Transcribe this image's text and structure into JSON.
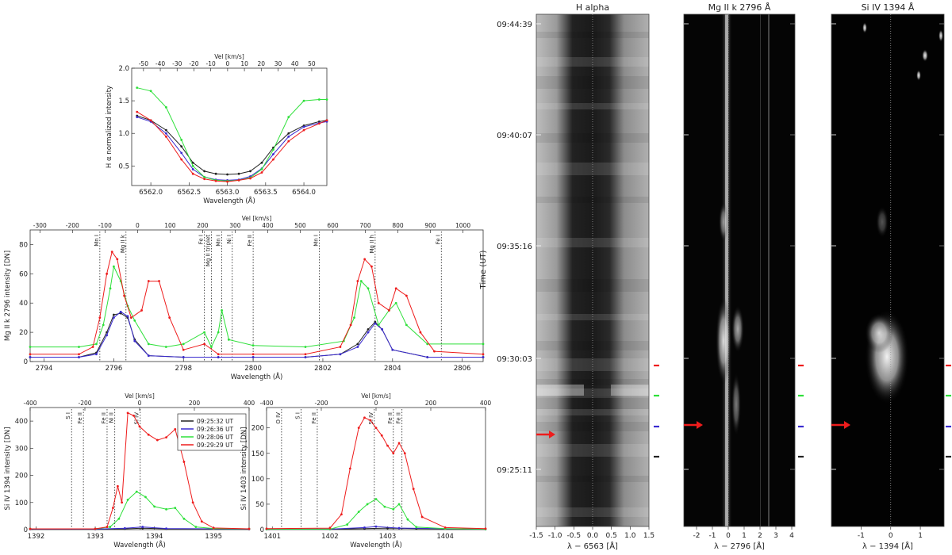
{
  "colors": {
    "black": "#222222",
    "blue": "#3a2bd0",
    "green": "#2ee03a",
    "red": "#ee1c1c"
  },
  "chart_data": [
    {
      "type": "line",
      "name": "halpha_profiles",
      "xlabel": "Wavelength (Å)",
      "ylabel": "H α normalized intensity",
      "x2label": "Vel [km/s]",
      "xlim": [
        6561.75,
        6564.3
      ],
      "ylim": [
        0.2,
        2.0
      ],
      "x2lim": [
        -57,
        59
      ],
      "xticks": [
        6562.0,
        6562.5,
        6563.0,
        6563.5,
        6564.0
      ],
      "xtick_labels": [
        "6562.0",
        "6562.5",
        "6563.0",
        "6563.5",
        "6564.0"
      ],
      "yticks": [
        0.5,
        1.0,
        1.5,
        2.0
      ],
      "ytick_labels": [
        "0.5",
        "1.0",
        "1.5",
        "2.0"
      ],
      "x2ticks": [
        -50,
        -40,
        -30,
        -20,
        -10,
        0,
        10,
        20,
        30,
        40,
        50
      ],
      "x2tick_labels": [
        "-50",
        "-40",
        "-30",
        "-20",
        "-10",
        "0",
        "10",
        "20",
        "30",
        "40",
        "50"
      ],
      "series": [
        {
          "color_key": "black",
          "x": [
            6561.82,
            6562.0,
            6562.2,
            6562.4,
            6562.55,
            6562.7,
            6562.85,
            6563.0,
            6563.15,
            6563.3,
            6563.45,
            6563.6,
            6563.8,
            6564.0,
            6564.2,
            6564.3
          ],
          "y": [
            1.27,
            1.2,
            1.05,
            0.8,
            0.55,
            0.42,
            0.38,
            0.37,
            0.38,
            0.42,
            0.55,
            0.78,
            1.0,
            1.12,
            1.18,
            1.2
          ]
        },
        {
          "color_key": "blue",
          "x": [
            6561.82,
            6562.0,
            6562.2,
            6562.4,
            6562.55,
            6562.7,
            6562.85,
            6563.0,
            6563.15,
            6563.3,
            6563.45,
            6563.6,
            6563.8,
            6564.0,
            6564.2,
            6564.3
          ],
          "y": [
            1.25,
            1.18,
            1.0,
            0.7,
            0.45,
            0.33,
            0.29,
            0.28,
            0.29,
            0.34,
            0.46,
            0.68,
            0.95,
            1.1,
            1.16,
            1.18
          ]
        },
        {
          "color_key": "green",
          "x": [
            6561.82,
            6562.0,
            6562.2,
            6562.4,
            6562.55,
            6562.7,
            6562.85,
            6563.0,
            6563.15,
            6563.3,
            6563.45,
            6563.6,
            6563.8,
            6564.0,
            6564.2,
            6564.3
          ],
          "y": [
            1.7,
            1.65,
            1.4,
            0.9,
            0.5,
            0.33,
            0.28,
            0.27,
            0.28,
            0.32,
            0.45,
            0.75,
            1.25,
            1.5,
            1.52,
            1.52
          ]
        },
        {
          "color_key": "red",
          "x": [
            6561.82,
            6562.0,
            6562.2,
            6562.4,
            6562.55,
            6562.7,
            6562.85,
            6563.0,
            6563.15,
            6563.3,
            6563.45,
            6563.6,
            6563.8,
            6564.0,
            6564.2,
            6564.3
          ],
          "y": [
            1.33,
            1.2,
            0.95,
            0.6,
            0.38,
            0.3,
            0.27,
            0.26,
            0.28,
            0.31,
            0.4,
            0.6,
            0.88,
            1.05,
            1.15,
            1.2
          ]
        }
      ]
    },
    {
      "type": "line",
      "name": "mgii_profiles",
      "xlabel": "Wavelength (Å)",
      "ylabel": "Mg II k 2796 intensity [DN]",
      "x2label": "Vel [km/s]",
      "xlim": [
        2793.6,
        2806.6
      ],
      "ylim": [
        0,
        90
      ],
      "x2lim": [
        -330,
        1062
      ],
      "xticks": [
        2794,
        2796,
        2798,
        2800,
        2802,
        2804,
        2806
      ],
      "xtick_labels": [
        "2794",
        "2796",
        "2798",
        "2800",
        "2802",
        "2804",
        "2806"
      ],
      "yticks": [
        0,
        20,
        40,
        60,
        80
      ],
      "ytick_labels": [
        "0",
        "20",
        "40",
        "60",
        "80"
      ],
      "x2ticks": [
        -300,
        -200,
        -100,
        0,
        100,
        200,
        300,
        400,
        500,
        600,
        700,
        800,
        900,
        1000
      ],
      "x2tick_labels": [
        "-300",
        "-200",
        "-100",
        "0",
        "100",
        "200",
        "300",
        "400",
        "500",
        "600",
        "700",
        "800",
        "900",
        "1000"
      ],
      "line_labels": [
        {
          "x": 2795.6,
          "label": "Mn I"
        },
        {
          "x": 2796.35,
          "label": "Mg II k"
        },
        {
          "x": 2798.6,
          "label": "Fe I"
        },
        {
          "x": 2798.8,
          "label": "Mg II triplet"
        },
        {
          "x": 2799.1,
          "label": "Mn I"
        },
        {
          "x": 2799.4,
          "label": "Ni I"
        },
        {
          "x": 2800.0,
          "label": "Fe II"
        },
        {
          "x": 2801.9,
          "label": "Mn I"
        },
        {
          "x": 2803.5,
          "label": "Mg II h"
        },
        {
          "x": 2805.4,
          "label": "Fe I"
        }
      ],
      "series": [
        {
          "color_key": "black",
          "x": [
            2793.6,
            2795.0,
            2795.5,
            2795.8,
            2796.0,
            2796.2,
            2796.4,
            2796.6,
            2797.0,
            2798.0,
            2799.0,
            2800.0,
            2801.5,
            2802.5,
            2803.0,
            2803.3,
            2803.5,
            2803.7,
            2804.0,
            2805.0,
            2806.6
          ],
          "y": [
            3,
            3,
            6,
            20,
            32,
            33,
            30,
            15,
            4,
            3,
            3,
            3,
            3,
            5,
            12,
            22,
            27,
            22,
            8,
            3,
            3
          ]
        },
        {
          "color_key": "blue",
          "x": [
            2793.6,
            2795.0,
            2795.5,
            2795.8,
            2796.0,
            2796.2,
            2796.4,
            2796.6,
            2797.0,
            2798.0,
            2799.0,
            2800.0,
            2801.5,
            2802.5,
            2803.0,
            2803.3,
            2803.5,
            2803.7,
            2804.0,
            2805.0,
            2806.6
          ],
          "y": [
            3,
            3,
            5,
            18,
            30,
            34,
            31,
            14,
            4,
            3,
            3,
            3,
            3,
            5,
            10,
            20,
            26,
            22,
            8,
            3,
            3
          ]
        },
        {
          "color_key": "green",
          "x": [
            2793.6,
            2795.0,
            2795.5,
            2795.7,
            2795.9,
            2796.0,
            2796.2,
            2796.4,
            2796.6,
            2797.0,
            2797.5,
            2798.0,
            2798.6,
            2798.8,
            2799.0,
            2799.1,
            2799.3,
            2800.0,
            2801.5,
            2802.6,
            2802.9,
            2803.1,
            2803.3,
            2803.6,
            2803.9,
            2804.1,
            2804.4,
            2805.0,
            2806.6
          ],
          "y": [
            10,
            10,
            12,
            25,
            50,
            65,
            55,
            38,
            28,
            12,
            10,
            12,
            20,
            10,
            20,
            35,
            15,
            11,
            10,
            14,
            30,
            55,
            50,
            25,
            35,
            40,
            25,
            12,
            12
          ]
        },
        {
          "color_key": "red",
          "x": [
            2793.6,
            2795.0,
            2795.4,
            2795.6,
            2795.8,
            2795.95,
            2796.1,
            2796.3,
            2796.5,
            2796.8,
            2797.0,
            2797.3,
            2797.6,
            2798.0,
            2798.6,
            2799.0,
            2800.0,
            2801.5,
            2802.5,
            2802.8,
            2803.0,
            2803.2,
            2803.4,
            2803.6,
            2803.9,
            2804.1,
            2804.4,
            2804.8,
            2805.2,
            2806.6
          ],
          "y": [
            5,
            5,
            10,
            30,
            60,
            75,
            70,
            45,
            30,
            35,
            55,
            55,
            30,
            8,
            12,
            5,
            5,
            5,
            10,
            25,
            55,
            70,
            65,
            40,
            35,
            50,
            45,
            20,
            7,
            5
          ]
        }
      ]
    },
    {
      "type": "line",
      "name": "siiv1394_profiles",
      "xlabel": "Wavelength (Å)",
      "ylabel": "Si IV 1394 intensity [DN]",
      "x2label": "Vel [km/s]",
      "xlim": [
        1391.9,
        1395.6
      ],
      "ylim": [
        0,
        450
      ],
      "x2lim": [
        -400,
        400
      ],
      "xticks": [
        1392,
        1393,
        1394,
        1395
      ],
      "xtick_labels": [
        "1392",
        "1393",
        "1394",
        "1395"
      ],
      "yticks": [
        0,
        100,
        200,
        300,
        400
      ],
      "ytick_labels": [
        "0",
        "100",
        "200",
        "300",
        "400"
      ],
      "x2ticks": [
        -400,
        -200,
        0,
        200,
        400
      ],
      "x2tick_labels": [
        "-400",
        "-200",
        "0",
        "200",
        "400"
      ],
      "line_labels": [
        {
          "x": 1392.6,
          "label": "S I"
        },
        {
          "x": 1392.8,
          "label": "Fe II"
        },
        {
          "x": 1393.2,
          "label": "Fe II"
        },
        {
          "x": 1393.33,
          "label": "Ni II"
        },
        {
          "x": 1393.76,
          "label": "Si IV"
        }
      ],
      "legend": [
        {
          "label": "09:25:32 UT",
          "color_key": "black"
        },
        {
          "label": "09:26:36 UT",
          "color_key": "blue"
        },
        {
          "label": "09:28:06 UT",
          "color_key": "green"
        },
        {
          "label": "09:29:29 UT",
          "color_key": "red"
        }
      ],
      "series": [
        {
          "color_key": "black",
          "x": [
            1391.9,
            1393.0,
            1393.5,
            1393.8,
            1394.2,
            1395.6
          ],
          "y": [
            2,
            2,
            3,
            5,
            3,
            2
          ]
        },
        {
          "color_key": "blue",
          "x": [
            1391.9,
            1393.0,
            1393.5,
            1393.8,
            1394.2,
            1395.6
          ],
          "y": [
            2,
            2,
            5,
            10,
            4,
            2
          ]
        },
        {
          "color_key": "green",
          "x": [
            1391.9,
            1393.0,
            1393.25,
            1393.4,
            1393.55,
            1393.7,
            1393.85,
            1394.0,
            1394.2,
            1394.35,
            1394.5,
            1394.7,
            1395.0,
            1395.6
          ],
          "y": [
            3,
            3,
            10,
            40,
            110,
            140,
            120,
            85,
            75,
            80,
            40,
            10,
            4,
            3
          ]
        },
        {
          "color_key": "red",
          "x": [
            1391.9,
            1393.0,
            1393.2,
            1393.3,
            1393.38,
            1393.45,
            1393.55,
            1393.65,
            1393.75,
            1393.9,
            1394.05,
            1394.2,
            1394.35,
            1394.5,
            1394.65,
            1394.8,
            1395.0,
            1395.6
          ],
          "y": [
            3,
            3,
            10,
            80,
            160,
            100,
            430,
            420,
            380,
            350,
            330,
            340,
            370,
            250,
            100,
            30,
            6,
            3
          ]
        }
      ]
    },
    {
      "type": "line",
      "name": "siiv1403_profiles",
      "xlabel": "Wavelength (Å)",
      "ylabel": "Si IV 1403 intensity [DN]",
      "x2label": "Vel [km/s]",
      "xlim": [
        1400.9,
        1404.7
      ],
      "ylim": [
        0,
        240
      ],
      "x2lim": [
        -400,
        400
      ],
      "xticks": [
        1401,
        1402,
        1403,
        1404
      ],
      "xtick_labels": [
        "1401",
        "1402",
        "1403",
        "1404"
      ],
      "yticks": [
        0,
        50,
        100,
        150,
        200
      ],
      "ytick_labels": [
        "0",
        "50",
        "100",
        "150",
        "200"
      ],
      "x2ticks": [
        -400,
        -200,
        0,
        200,
        400
      ],
      "x2tick_labels": [
        "-400",
        "-200",
        "0",
        "200",
        "400"
      ],
      "line_labels": [
        {
          "x": 1401.16,
          "label": "O IV"
        },
        {
          "x": 1401.5,
          "label": "S I"
        },
        {
          "x": 1401.78,
          "label": "Fe II"
        },
        {
          "x": 1402.77,
          "label": "Si IV"
        },
        {
          "x": 1403.1,
          "label": "Fe II"
        },
        {
          "x": 1403.25,
          "label": "Fe II"
        }
      ],
      "series": [
        {
          "color_key": "black",
          "x": [
            1400.9,
            1402.0,
            1402.6,
            1403.0,
            1403.5,
            1404.7
          ],
          "y": [
            1,
            1,
            2,
            3,
            2,
            1
          ]
        },
        {
          "color_key": "blue",
          "x": [
            1400.9,
            1402.0,
            1402.6,
            1402.8,
            1403.2,
            1404.7
          ],
          "y": [
            1,
            1,
            4,
            6,
            3,
            1
          ]
        },
        {
          "color_key": "green",
          "x": [
            1400.9,
            1402.0,
            1402.3,
            1402.5,
            1402.65,
            1402.8,
            1402.95,
            1403.1,
            1403.2,
            1403.35,
            1403.5,
            1404.0,
            1404.7
          ],
          "y": [
            1,
            1,
            10,
            35,
            50,
            60,
            45,
            40,
            50,
            20,
            5,
            2,
            1
          ]
        },
        {
          "color_key": "red",
          "x": [
            1400.9,
            1402.0,
            1402.2,
            1402.35,
            1402.5,
            1402.6,
            1402.7,
            1402.8,
            1402.9,
            1403.0,
            1403.1,
            1403.2,
            1403.3,
            1403.45,
            1403.6,
            1404.0,
            1404.7
          ],
          "y": [
            2,
            3,
            30,
            120,
            200,
            220,
            215,
            200,
            185,
            165,
            150,
            170,
            150,
            80,
            25,
            4,
            2
          ]
        }
      ]
    },
    {
      "type": "heatmap",
      "name": "halpha_timeslice",
      "title": "H alpha",
      "xlabel": "λ − 6563 [Å]",
      "ylabel": "Time (UT)",
      "xlim": [
        -1.5,
        1.5
      ],
      "xticks": [
        -1.5,
        -1.0,
        -0.5,
        0.0,
        0.5,
        1.0,
        1.5
      ],
      "xtick_labels": [
        "-1.5",
        "-1.0",
        "-0.5",
        "0.0",
        "0.5",
        "1.0",
        "1.5"
      ],
      "yticks": [
        "09:44:39",
        "09:40:07",
        "09:35:16",
        "09:30:03",
        "09:25:11"
      ]
    },
    {
      "type": "heatmap",
      "name": "mgii_timeslice",
      "title": "Mg II k 2796 Å",
      "xlabel": "λ − 2796 [Å]",
      "xlim": [
        -2.8,
        4.2
      ],
      "xticks": [
        -2,
        -1,
        0,
        1,
        2,
        3,
        4
      ],
      "xtick_labels": [
        "-2",
        "-1",
        "0",
        "1",
        "2",
        "3",
        "4"
      ]
    },
    {
      "type": "heatmap",
      "name": "siiv_timeslice",
      "title": "Si IV 1394 Å",
      "xlabel": "λ − 1394 [Å]",
      "xlim": [
        -2.0,
        1.8
      ],
      "xticks": [
        -1,
        0,
        1
      ],
      "xtick_labels": [
        "-1",
        "0",
        "1"
      ]
    }
  ],
  "time_markers": [
    {
      "time": "09:29:29",
      "color_key": "red"
    },
    {
      "time": "09:28:06",
      "color_key": "green"
    },
    {
      "time": "09:26:36",
      "color_key": "blue"
    },
    {
      "time": "09:25:32",
      "color_key": "black"
    }
  ]
}
